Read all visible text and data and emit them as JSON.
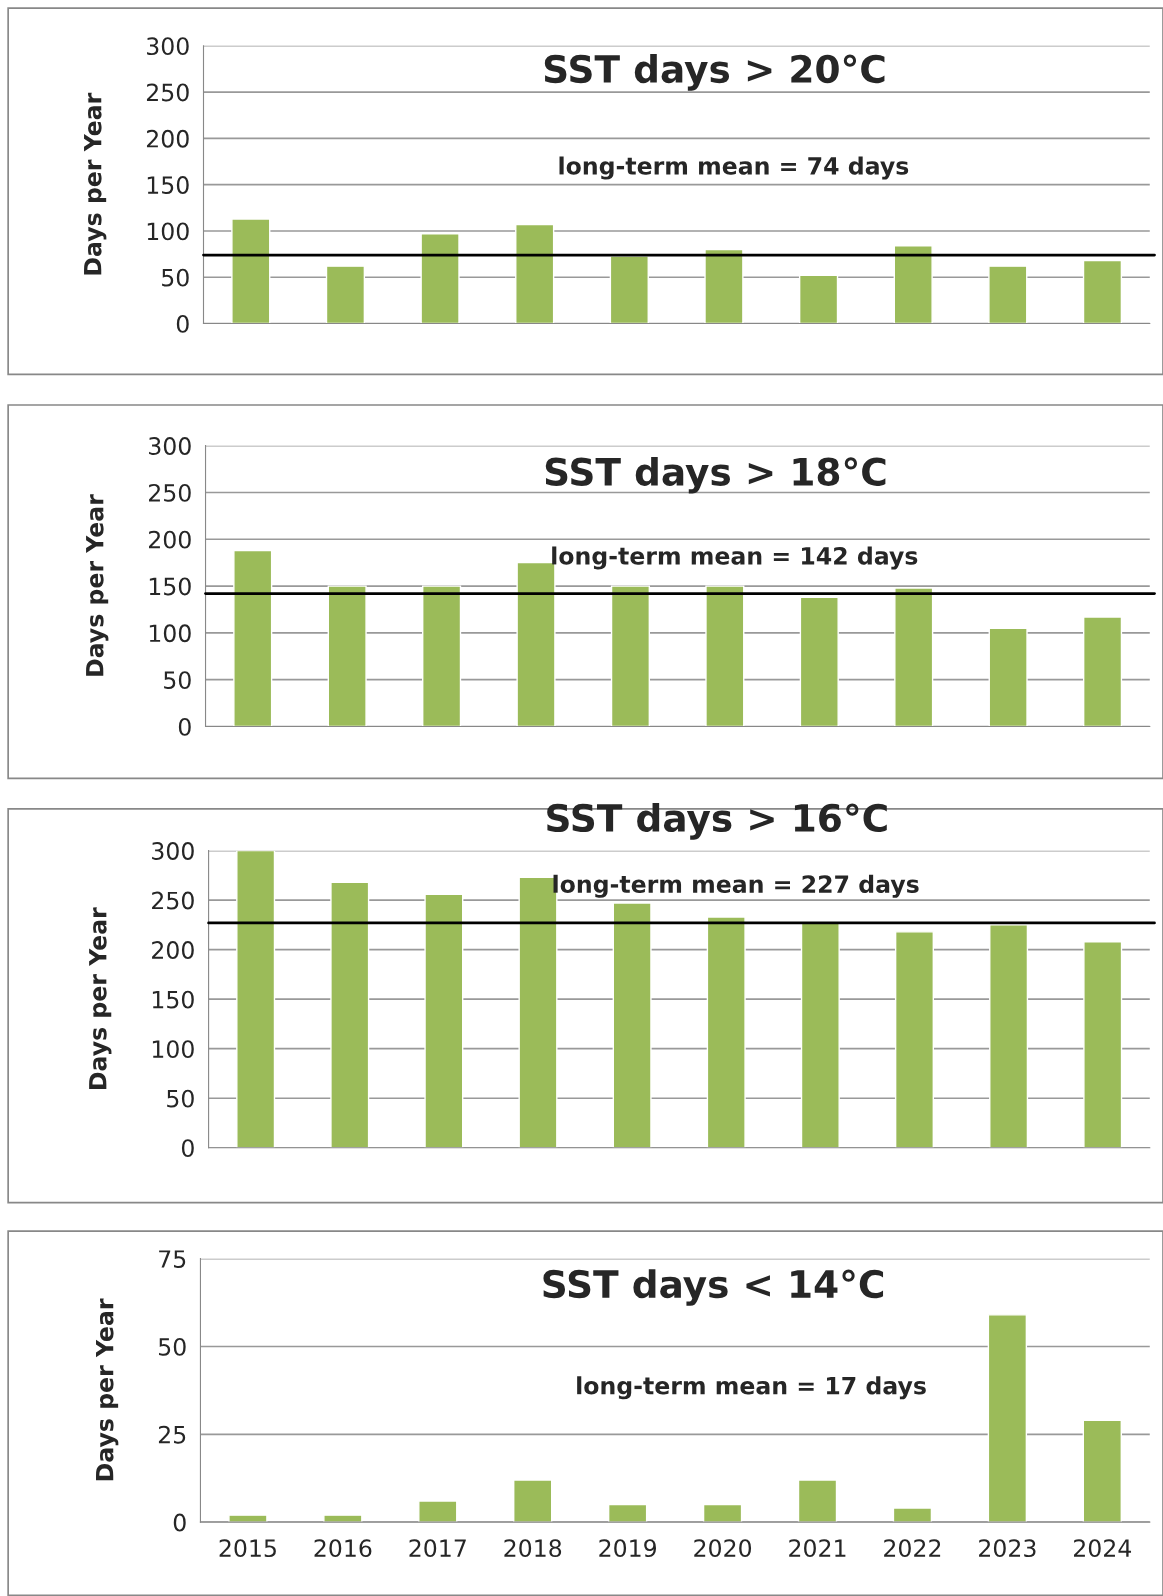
{
  "chart_data": [
    {
      "type": "bar",
      "title": "SST days > 20°C",
      "ylabel": "Days per Year",
      "categories": [
        "2015",
        "2016",
        "2017",
        "2018",
        "2019",
        "2020",
        "2021",
        "2022",
        "2023",
        "2024"
      ],
      "tick_labels": "y",
      "color": "#9bbb59",
      "values": [
        113,
        62,
        97,
        107,
        73,
        80,
        52,
        84,
        62,
        68
      ],
      "ylim": [
        0,
        300
      ],
      "yticks": [
        0,
        50,
        100,
        150,
        200,
        250,
        300
      ],
      "grid": "y",
      "ref_lines": [
        {
          "axis": "y",
          "value": 74,
          "label": "long-term mean = 74 days",
          "color": "#000000"
        }
      ]
    },
    {
      "type": "bar",
      "title": "SST days > 18°C",
      "ylabel": "Days per Year",
      "categories": [
        "2015",
        "2016",
        "2017",
        "2018",
        "2019",
        "2020",
        "2021",
        "2022",
        "2023",
        "2024"
      ],
      "tick_labels": "y",
      "color": "#9bbb59",
      "values": [
        188,
        150,
        150,
        175,
        150,
        150,
        138,
        148,
        105,
        117
      ],
      "ylim": [
        0,
        300
      ],
      "yticks": [
        0,
        50,
        100,
        150,
        200,
        250,
        300
      ],
      "grid": "y",
      "ref_lines": [
        {
          "axis": "y",
          "value": 142,
          "label": "long-term mean = 142 days",
          "color": "#000000"
        }
      ]
    },
    {
      "type": "bar",
      "title": "SST days > 16°C",
      "ylabel": "Days per Year",
      "categories": [
        "2015",
        "2016",
        "2017",
        "2018",
        "2019",
        "2020",
        "2021",
        "2022",
        "2023",
        "2024"
      ],
      "tick_labels": "y",
      "color": "#9bbb59",
      "values": [
        300,
        268,
        256,
        273,
        247,
        233,
        227,
        218,
        225,
        208
      ],
      "ylim": [
        0,
        300
      ],
      "yticks": [
        0,
        50,
        100,
        150,
        200,
        250,
        300
      ],
      "grid": "y",
      "ref_lines": [
        {
          "axis": "y",
          "value": 227,
          "label": "long-term mean = 227 days",
          "color": "#000000"
        }
      ]
    },
    {
      "type": "bar",
      "title": "SST days < 14°C",
      "ylabel": "Days per Year",
      "categories": [
        "2015",
        "2016",
        "2017",
        "2018",
        "2019",
        "2020",
        "2021",
        "2022",
        "2023",
        "2024"
      ],
      "color": "#9bbb59",
      "values": [
        2,
        2,
        6,
        12,
        5,
        5,
        12,
        4,
        59,
        29
      ],
      "ylim": [
        0,
        75
      ],
      "yticks": [
        0,
        25,
        50,
        75
      ],
      "grid": "y",
      "annotations": [
        "long-term mean = 17 days"
      ]
    }
  ]
}
